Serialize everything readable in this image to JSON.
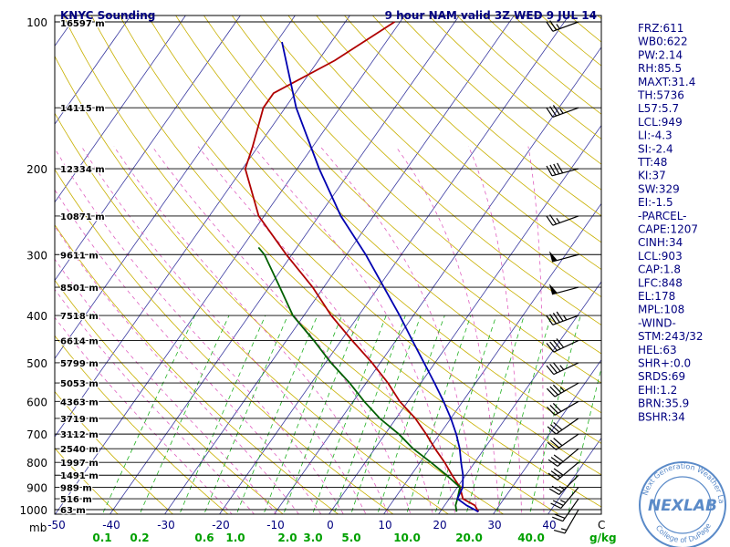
{
  "header": {
    "title": "KNYC Sounding",
    "valid": "9 hour NAM valid 3Z WED  9 JUL 14"
  },
  "chart_data": {
    "type": "skew-t",
    "pressure_labels": [
      "100",
      "200",
      "300",
      "400",
      "500",
      "600",
      "700",
      "800",
      "900",
      "1000"
    ],
    "pressure_unit": "mb",
    "temp_ticks": [
      "-50",
      "-40",
      "-30",
      "-20",
      "-10",
      "0",
      "10",
      "20",
      "30",
      "40"
    ],
    "temp_unit": "C",
    "mixing_ratio_labels": [
      "0.1",
      "0.2",
      "0.6",
      "1.0",
      "2.0",
      "3.0",
      "5.0",
      "10.0",
      "20.0",
      "40.0"
    ],
    "mixing_ratio_unit": "g/kg",
    "height_labels": [
      {
        "p": 100,
        "text": "16597 m"
      },
      {
        "p": 150,
        "text": "14115 m"
      },
      {
        "p": 200,
        "text": "12334 m"
      },
      {
        "p": 250,
        "text": "10871 m"
      },
      {
        "p": 300,
        "text": "9611 m"
      },
      {
        "p": 350,
        "text": "8501 m"
      },
      {
        "p": 400,
        "text": "7518 m"
      },
      {
        "p": 450,
        "text": "6614 m"
      },
      {
        "p": 500,
        "text": "5799 m"
      },
      {
        "p": 550,
        "text": "5053 m"
      },
      {
        "p": 600,
        "text": "4363 m"
      },
      {
        "p": 650,
        "text": "3719 m"
      },
      {
        "p": 700,
        "text": "3112 m"
      },
      {
        "p": 750,
        "text": "2540 m"
      },
      {
        "p": 800,
        "text": "1997 m"
      },
      {
        "p": 850,
        "text": "1491 m"
      },
      {
        "p": 900,
        "text": "989 m"
      },
      {
        "p": 950,
        "text": "516 m"
      },
      {
        "p": 1000,
        "text": "63 m"
      }
    ],
    "series": [
      {
        "color": "#b00000",
        "points": [
          [
            1010,
            27
          ],
          [
            980,
            25.5
          ],
          [
            950,
            22.5
          ],
          [
            900,
            20.5
          ],
          [
            850,
            17.5
          ],
          [
            800,
            14.5
          ],
          [
            750,
            11
          ],
          [
            700,
            7.5
          ],
          [
            650,
            3.5
          ],
          [
            600,
            -1.5
          ],
          [
            550,
            -6
          ],
          [
            500,
            -11.5
          ],
          [
            450,
            -18
          ],
          [
            400,
            -25
          ],
          [
            350,
            -32
          ],
          [
            300,
            -41
          ],
          [
            250,
            -51
          ],
          [
            200,
            -59.5
          ],
          [
            180,
            -61
          ],
          [
            150,
            -64
          ],
          [
            140,
            -64
          ],
          [
            120,
            -57
          ],
          [
            100,
            -51
          ]
        ]
      },
      {
        "color": "#006000",
        "points": [
          [
            1010,
            23
          ],
          [
            980,
            22
          ],
          [
            950,
            21.5
          ],
          [
            900,
            20.5
          ],
          [
            850,
            16.5
          ],
          [
            800,
            12
          ],
          [
            750,
            7
          ],
          [
            700,
            2.5
          ],
          [
            650,
            -3
          ],
          [
            600,
            -8
          ],
          [
            550,
            -13
          ],
          [
            500,
            -19
          ],
          [
            450,
            -25
          ],
          [
            400,
            -32
          ],
          [
            350,
            -38
          ],
          [
            300,
            -45
          ],
          [
            290,
            -47
          ]
        ]
      },
      {
        "color": "#0000b0",
        "points": [
          [
            1010,
            27
          ],
          [
            980,
            24
          ],
          [
            950,
            21.5
          ],
          [
            900,
            21
          ],
          [
            850,
            19.5
          ],
          [
            800,
            17.5
          ],
          [
            750,
            15.5
          ],
          [
            700,
            13
          ],
          [
            650,
            10
          ],
          [
            600,
            6.5
          ],
          [
            550,
            2.5
          ],
          [
            500,
            -2
          ],
          [
            450,
            -7
          ],
          [
            400,
            -12.5
          ],
          [
            350,
            -19
          ],
          [
            300,
            -26.5
          ],
          [
            250,
            -36
          ],
          [
            200,
            -46
          ],
          [
            150,
            -58
          ],
          [
            110,
            -69
          ]
        ]
      }
    ],
    "wind_barbs": [
      {
        "p": 100,
        "dir": 250,
        "spd": 25
      },
      {
        "p": 150,
        "dir": 250,
        "spd": 35
      },
      {
        "p": 200,
        "dir": 255,
        "spd": 40
      },
      {
        "p": 250,
        "dir": 250,
        "spd": 25
      },
      {
        "p": 300,
        "dir": 255,
        "spd": 50
      },
      {
        "p": 350,
        "dir": 255,
        "spd": 50
      },
      {
        "p": 400,
        "dir": 250,
        "spd": 45
      },
      {
        "p": 450,
        "dir": 245,
        "spd": 40
      },
      {
        "p": 500,
        "dir": 245,
        "spd": 35
      },
      {
        "p": 550,
        "dir": 240,
        "spd": 35
      },
      {
        "p": 600,
        "dir": 240,
        "spd": 30
      },
      {
        "p": 650,
        "dir": 235,
        "spd": 30
      },
      {
        "p": 700,
        "dir": 235,
        "spd": 30
      },
      {
        "p": 750,
        "dir": 230,
        "spd": 30
      },
      {
        "p": 800,
        "dir": 230,
        "spd": 30
      },
      {
        "p": 850,
        "dir": 225,
        "spd": 25
      },
      {
        "p": 900,
        "dir": 220,
        "spd": 25
      },
      {
        "p": 950,
        "dir": 215,
        "spd": 20
      },
      {
        "p": 1000,
        "dir": 210,
        "spd": 15
      }
    ]
  },
  "indices": [
    {
      "text": "FRZ:611"
    },
    {
      "text": "WB0:622"
    },
    {
      "text": "PW:2.14"
    },
    {
      "text": "RH:85.5"
    },
    {
      "text": "MAXT:31.4"
    },
    {
      "text": "TH:5736"
    },
    {
      "text": "L57:5.7"
    },
    {
      "text": "LCL:949"
    },
    {
      "text": "LI:-4.3"
    },
    {
      "text": "SI:-2.4"
    },
    {
      "text": "TT:48"
    },
    {
      "text": "KI:37"
    },
    {
      "text": "SW:329"
    },
    {
      "text": "EI:-1.5"
    },
    {
      "text": "-PARCEL-"
    },
    {
      "text": "CAPE:1207"
    },
    {
      "text": "CINH:34"
    },
    {
      "text": "LCL:903"
    },
    {
      "text": "CAP:1.8"
    },
    {
      "text": "LFC:848"
    },
    {
      "text": "EL:178"
    },
    {
      "text": "MPL:108"
    },
    {
      "text": "-WIND-"
    },
    {
      "text": "STM:243/32"
    },
    {
      "text": "HEL:63"
    },
    {
      "text": "SHR+:0.0"
    },
    {
      "text": "SRDS:69"
    },
    {
      "text": "EHI:1.2"
    },
    {
      "text": "BRN:35.9"
    },
    {
      "text": "BSHR:34"
    }
  ],
  "logo": {
    "brand": "NEXLAB",
    "ring_top": "Next Generation Weather Lab",
    "ring_bottom": "College of DuPage"
  },
  "colors": {
    "navy": "#000080",
    "green_text": "#00a000",
    "isotherm": "#3a3aa0",
    "dry_adiabat": "#c8b000",
    "moist_adiabat": "#e060c0",
    "mixing_ratio": "#20b020",
    "frame": "#000000",
    "logo": "#5a8ac8"
  }
}
